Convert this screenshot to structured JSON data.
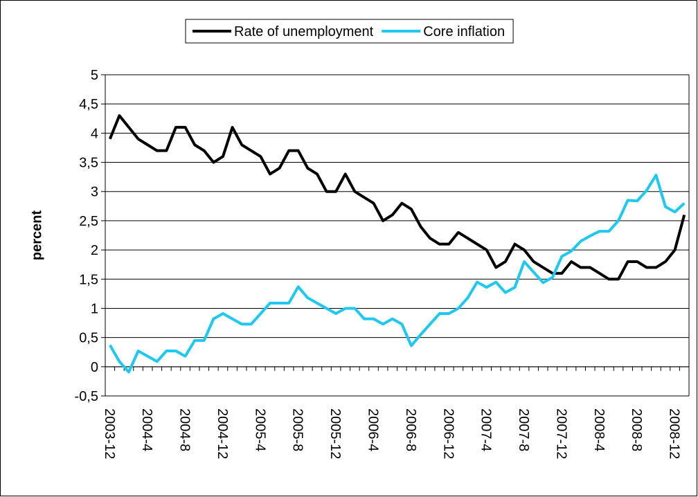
{
  "chart_data": {
    "type": "line",
    "y_label": "percent",
    "legend": "top",
    "grid": true,
    "ylim": [
      -0.5,
      5
    ],
    "yticks": [
      {
        "value": -0.5,
        "label": "-0,5"
      },
      0,
      {
        "value": 0.5,
        "label": "0,5"
      },
      1,
      {
        "value": 1.5,
        "label": "1,5"
      },
      2,
      {
        "value": 2.5,
        "label": "2,5"
      },
      3,
      {
        "value": 3.5,
        "label": "3,5"
      },
      4,
      {
        "value": 4.5,
        "label": "4,5"
      },
      5
    ],
    "categories": [
      "2003-12",
      null,
      null,
      null,
      "2004-4",
      null,
      null,
      null,
      "2004-8",
      null,
      null,
      null,
      "2004-12",
      null,
      null,
      null,
      "2005-4",
      null,
      null,
      null,
      "2005-8",
      null,
      null,
      null,
      "2005-12",
      null,
      null,
      null,
      "2006-4",
      null,
      null,
      null,
      "2006-8",
      null,
      null,
      null,
      "2006-12",
      null,
      null,
      null,
      "2007-4",
      null,
      null,
      null,
      "2007-8",
      null,
      null,
      null,
      "2007-12",
      null,
      null,
      null,
      "2008-4",
      null,
      null,
      null,
      "2008-8",
      null,
      null,
      null,
      "2008-12",
      null
    ],
    "series": [
      {
        "name": "Rate of unemployment",
        "color": "#000000",
        "values": [
          3.9,
          4.3,
          4.1,
          3.9,
          3.8,
          3.7,
          3.7,
          4.1,
          4.1,
          3.8,
          3.7,
          3.5,
          3.6,
          4.1,
          3.8,
          3.7,
          3.6,
          3.3,
          3.4,
          3.7,
          3.7,
          3.4,
          3.3,
          3.0,
          3.0,
          3.3,
          3.0,
          2.9,
          2.8,
          2.5,
          2.6,
          2.8,
          2.7,
          2.4,
          2.2,
          2.1,
          2.1,
          2.3,
          2.2,
          2.1,
          2.0,
          1.7,
          1.8,
          2.1,
          2.0,
          1.8,
          1.7,
          1.6,
          1.6,
          1.8,
          1.7,
          1.7,
          1.6,
          1.5,
          1.5,
          1.8,
          1.8,
          1.7,
          1.7,
          1.8,
          2.0,
          2.6
        ]
      },
      {
        "name": "Core inflation",
        "color": "#1ec8f0",
        "values": [
          0.37,
          0.09,
          -0.09,
          0.27,
          0.18,
          0.09,
          0.27,
          0.27,
          0.18,
          0.45,
          0.45,
          0.82,
          0.91,
          0.82,
          0.73,
          0.73,
          0.91,
          1.09,
          1.09,
          1.09,
          1.37,
          1.18,
          1.09,
          1.0,
          0.91,
          1.0,
          1.0,
          0.82,
          0.82,
          0.73,
          0.82,
          0.73,
          0.36,
          0.55,
          0.73,
          0.91,
          0.91,
          1.0,
          1.18,
          1.45,
          1.36,
          1.45,
          1.27,
          1.36,
          1.8,
          1.62,
          1.44,
          1.53,
          1.89,
          1.98,
          2.15,
          2.24,
          2.32,
          2.32,
          2.5,
          2.85,
          2.84,
          3.02,
          3.28,
          2.74,
          2.65,
          2.8
        ]
      }
    ]
  }
}
